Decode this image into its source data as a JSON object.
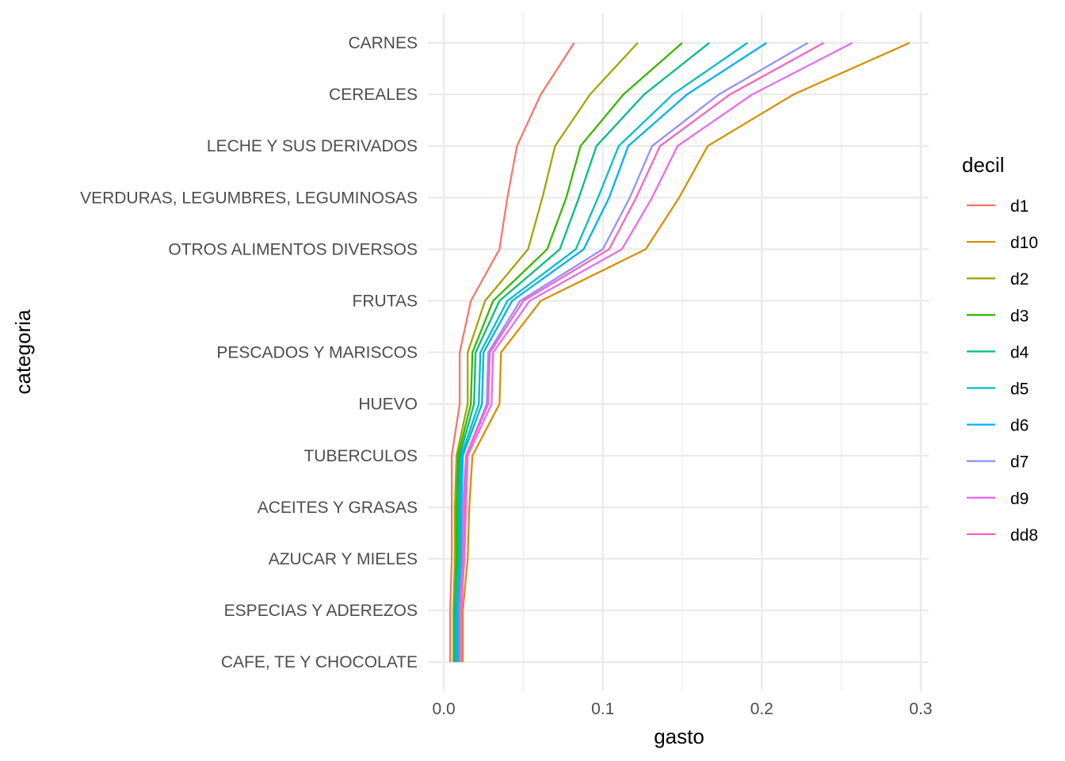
{
  "chart_data": {
    "type": "line",
    "xlabel": "gasto",
    "ylabel": "categoria",
    "xlim": [
      -0.01,
      0.305
    ],
    "x_ticks": [
      0.0,
      0.1,
      0.2,
      0.3
    ],
    "x_tick_labels": [
      "0.0",
      "0.1",
      "0.2",
      "0.3"
    ],
    "grid": true,
    "legend": {
      "title": "decil",
      "position": "right"
    },
    "categories": [
      "CARNES",
      "CEREALES",
      "LECHE Y SUS DERIVADOS",
      "VERDURAS, LEGUMBRES, LEGUMINOSAS",
      "OTROS ALIMENTOS DIVERSOS",
      "FRUTAS",
      "PESCADOS Y MARISCOS",
      "HUEVO",
      "TUBERCULOS",
      "ACEITES Y GRASAS",
      "AZUCAR Y MIELES",
      "ESPECIAS Y ADEREZOS",
      "CAFE, TE Y CHOCOLATE"
    ],
    "series": [
      {
        "name": "d1",
        "color": "#F8766D",
        "values": [
          0.082,
          0.061,
          0.046,
          0.04,
          0.035,
          0.017,
          0.01,
          0.01,
          0.005,
          0.005,
          0.005,
          0.004,
          0.004
        ]
      },
      {
        "name": "d10",
        "color": "#D89000",
        "values": [
          0.293,
          0.22,
          0.166,
          0.148,
          0.127,
          0.061,
          0.036,
          0.035,
          0.018,
          0.016,
          0.015,
          0.012,
          0.012
        ]
      },
      {
        "name": "d2",
        "color": "#A3A500",
        "values": [
          0.122,
          0.092,
          0.07,
          0.062,
          0.053,
          0.026,
          0.015,
          0.015,
          0.008,
          0.007,
          0.007,
          0.006,
          0.006
        ]
      },
      {
        "name": "d3",
        "color": "#39B600",
        "values": [
          0.15,
          0.113,
          0.086,
          0.077,
          0.065,
          0.031,
          0.018,
          0.017,
          0.009,
          0.008,
          0.008,
          0.007,
          0.007
        ]
      },
      {
        "name": "d4",
        "color": "#00BF7D",
        "values": [
          0.167,
          0.126,
          0.096,
          0.085,
          0.073,
          0.035,
          0.02,
          0.019,
          0.01,
          0.009,
          0.009,
          0.007,
          0.007
        ]
      },
      {
        "name": "d5",
        "color": "#00BFC4",
        "values": [
          0.191,
          0.144,
          0.11,
          0.097,
          0.083,
          0.04,
          0.023,
          0.022,
          0.011,
          0.01,
          0.01,
          0.008,
          0.008
        ]
      },
      {
        "name": "d6",
        "color": "#00B0F6",
        "values": [
          0.203,
          0.153,
          0.116,
          0.104,
          0.088,
          0.043,
          0.025,
          0.024,
          0.012,
          0.011,
          0.011,
          0.009,
          0.009
        ]
      },
      {
        "name": "d7",
        "color": "#9590FF",
        "values": [
          0.229,
          0.173,
          0.131,
          0.117,
          0.1,
          0.048,
          0.028,
          0.027,
          0.014,
          0.012,
          0.012,
          0.01,
          0.01
        ]
      },
      {
        "name": "d9",
        "color": "#E76BF3",
        "values": [
          0.257,
          0.194,
          0.147,
          0.131,
          0.112,
          0.054,
          0.031,
          0.03,
          0.015,
          0.014,
          0.013,
          0.011,
          0.011
        ]
      },
      {
        "name": "dd8",
        "color": "#FF62BC",
        "values": [
          0.239,
          0.18,
          0.136,
          0.121,
          0.104,
          0.05,
          0.029,
          0.028,
          0.014,
          0.013,
          0.012,
          0.01,
          0.01
        ]
      }
    ]
  }
}
